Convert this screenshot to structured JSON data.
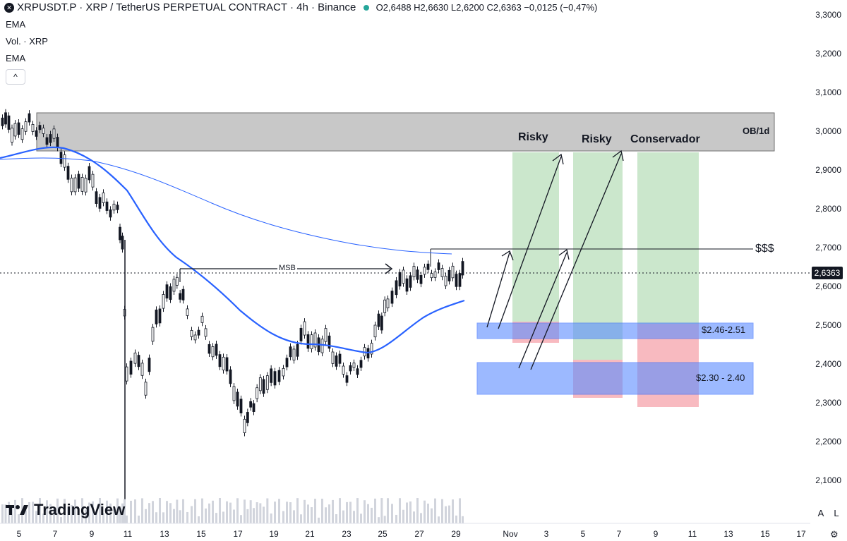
{
  "header": {
    "title": "XRPUSDT.P · XRP / TetherUS PERPETUAL CONTRACT · 4h · Binance",
    "ohlc": "O2,6488 H2,6630 L2,6200 C2,6363 −0,0125 (−0,47%)",
    "indicators": [
      "EMA",
      "Vol. · XRP",
      "EMA"
    ],
    "collapse_label": "^"
  },
  "price_axis": {
    "labels": [
      "3,3000",
      "3,2000",
      "3,1000",
      "3,0000",
      "2,9000",
      "2,8000",
      "2,7000",
      "2,6000",
      "2,5000",
      "2,4000",
      "2,3000",
      "2,2000",
      "2,1000"
    ],
    "current": "2,6363"
  },
  "time_axis": {
    "labels": [
      "5",
      "7",
      "9",
      "11",
      "13",
      "15",
      "17",
      "19",
      "21",
      "23",
      "25",
      "27",
      "29",
      "Nov",
      "3",
      "5",
      "7",
      "9",
      "11",
      "13",
      "15",
      "17"
    ]
  },
  "annotations": {
    "ob": "OB/1d",
    "msb": "MSB",
    "liquidity": "$$$",
    "risky1": "Risky",
    "risky2": "Risky",
    "conservador": "Conservador",
    "zone1": "$2.46-2.51",
    "zone2": "$2.30 - 2.40"
  },
  "branding": {
    "logo": "TradingView"
  },
  "controls": {
    "auto": "A",
    "log": "L"
  },
  "colors": {
    "up": "#ffffff",
    "down": "#131722",
    "ema_short": "#2962ff",
    "ema_long": "#2962ff",
    "ob_zone": "#c8c8c8",
    "tp_zone": "#c8e6c9",
    "sl_zone": "#f8b6bd",
    "entry_zone": "#7ca4ff"
  }
}
